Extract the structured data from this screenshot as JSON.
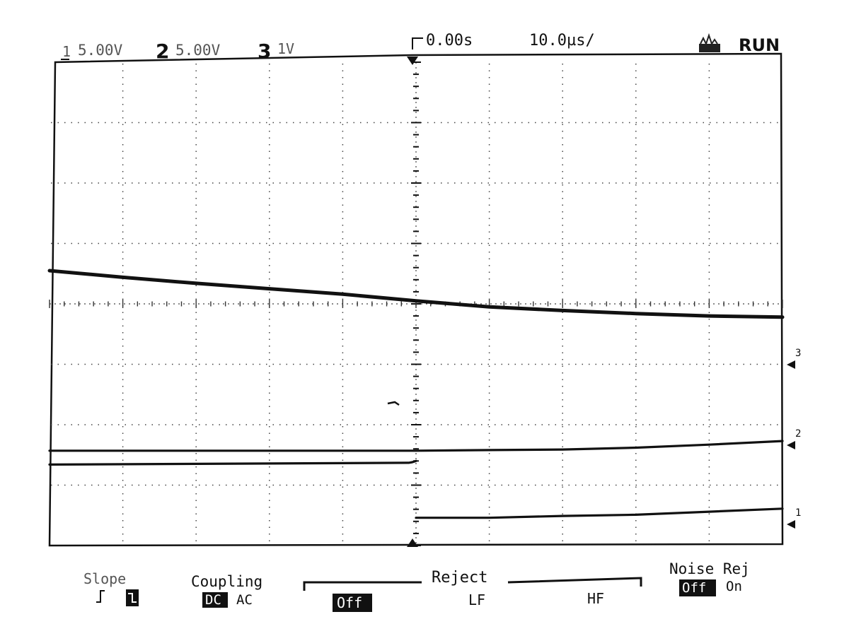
{
  "header": {
    "ch1": {
      "num": "1",
      "scale": "5.00V"
    },
    "ch2": {
      "num": "2",
      "scale": "5.00V"
    },
    "ch3": {
      "num": "3",
      "scale": "1V"
    },
    "delay": "0.00s",
    "timebase": "10.0µs/",
    "run_state": "RUN"
  },
  "softkeys": {
    "slope": {
      "label": "Slope"
    },
    "coupling": {
      "label": "Coupling",
      "dc": "DC",
      "ac": "AC"
    },
    "reject": {
      "label": "Reject",
      "off": "Off",
      "lf": "LF",
      "hf": "HF"
    },
    "noise_rej": {
      "label": "Noise Rej",
      "off": "Off",
      "on": "On"
    }
  },
  "markers": {
    "ch1": "1",
    "ch2": "2",
    "ch3": "3"
  },
  "colors": {
    "trace": "#111111",
    "grid": "#444444",
    "background": "#ffffff"
  },
  "chart_data": {
    "type": "line",
    "x_unit": "µs",
    "x_per_div": 10,
    "y_unit": "div",
    "xlim": [
      -50,
      50
    ],
    "ylim": [
      -4,
      4
    ],
    "grid": true,
    "series": [
      {
        "x": [
          -50,
          -40,
          -30,
          -20,
          -10,
          0,
          10,
          20,
          30,
          40,
          50
        ],
        "y": [
          0.55,
          0.44,
          0.34,
          0.25,
          0.16,
          0.05,
          -0.05,
          -0.11,
          -0.16,
          -0.2,
          -0.22
        ]
      },
      {
        "x": [
          -50,
          -3,
          -1,
          0,
          10,
          20,
          30,
          40,
          50
        ],
        "y": [
          -2.43,
          -2.43,
          -2.43,
          -2.43,
          -2.42,
          -2.41,
          -2.38,
          -2.33,
          -2.27
        ]
      },
      {
        "x": [
          -50,
          -1,
          -0.5,
          0,
          0,
          10,
          20,
          30,
          40,
          50
        ],
        "y": [
          -2.66,
          -2.63,
          -2.62,
          -2.6,
          -3.54,
          -3.54,
          -3.51,
          -3.49,
          -3.44,
          -3.39
        ]
      }
    ]
  }
}
